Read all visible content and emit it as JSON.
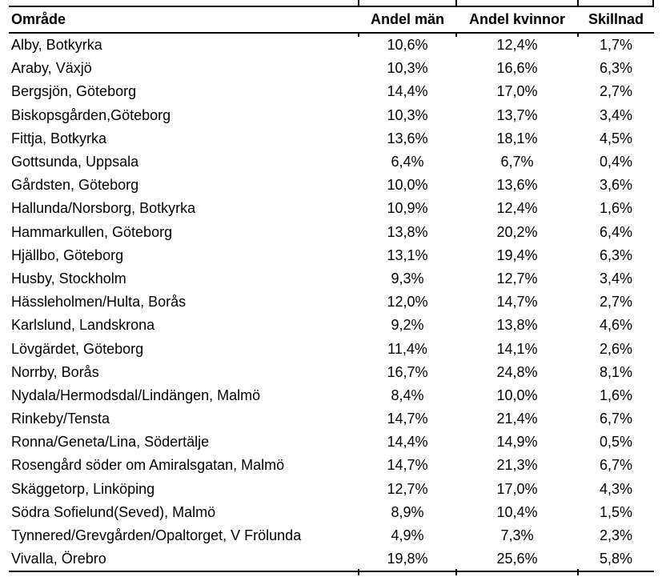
{
  "table": {
    "columns": [
      {
        "key": "omrade",
        "label": "Område"
      },
      {
        "key": "andel_man",
        "label": "Andel män"
      },
      {
        "key": "andel_kvinnor",
        "label": "Andel kvinnor"
      },
      {
        "key": "skillnad",
        "label": "Skillnad"
      }
    ],
    "rows": [
      {
        "omrade": "Alby, Botkyrka",
        "andel_man": "10,6%",
        "andel_kvinnor": "12,4%",
        "skillnad": "1,7%"
      },
      {
        "omrade": "Araby, Växjö",
        "andel_man": "10,3%",
        "andel_kvinnor": "16,6%",
        "skillnad": "6,3%"
      },
      {
        "omrade": "Bergsjön, Göteborg",
        "andel_man": "14,4%",
        "andel_kvinnor": "17,0%",
        "skillnad": "2,7%"
      },
      {
        "omrade": "Biskopsgården,Göteborg",
        "andel_man": "10,3%",
        "andel_kvinnor": "13,7%",
        "skillnad": "3,4%"
      },
      {
        "omrade": "Fittja, Botkyrka",
        "andel_man": "13,6%",
        "andel_kvinnor": "18,1%",
        "skillnad": "4,5%"
      },
      {
        "omrade": "Gottsunda, Uppsala",
        "andel_man": "6,4%",
        "andel_kvinnor": "6,7%",
        "skillnad": "0,4%"
      },
      {
        "omrade": "Gårdsten, Göteborg",
        "andel_man": "10,0%",
        "andel_kvinnor": "13,6%",
        "skillnad": "3,6%"
      },
      {
        "omrade": "Hallunda/Norsborg, Botkyrka",
        "andel_man": "10,9%",
        "andel_kvinnor": "12,4%",
        "skillnad": "1,6%"
      },
      {
        "omrade": "Hammarkullen, Göteborg",
        "andel_man": "13,8%",
        "andel_kvinnor": "20,2%",
        "skillnad": "6,4%"
      },
      {
        "omrade": "Hjällbo, Göteborg",
        "andel_man": "13,1%",
        "andel_kvinnor": "19,4%",
        "skillnad": "6,3%"
      },
      {
        "omrade": "Husby, Stockholm",
        "andel_man": "9,3%",
        "andel_kvinnor": "12,7%",
        "skillnad": "3,4%"
      },
      {
        "omrade": "Hässleholmen/Hulta, Borås",
        "andel_man": "12,0%",
        "andel_kvinnor": "14,7%",
        "skillnad": "2,7%"
      },
      {
        "omrade": "Karlslund, Landskrona",
        "andel_man": "9,2%",
        "andel_kvinnor": "13,8%",
        "skillnad": "4,6%"
      },
      {
        "omrade": "Lövgärdet, Göteborg",
        "andel_man": "11,4%",
        "andel_kvinnor": "14,1%",
        "skillnad": "2,6%"
      },
      {
        "omrade": "Norrby, Borås",
        "andel_man": "16,7%",
        "andel_kvinnor": "24,8%",
        "skillnad": "8,1%"
      },
      {
        "omrade": "Nydala/Hermodsdal/Lindängen, Malmö",
        "andel_man": "8,4%",
        "andel_kvinnor": "10,0%",
        "skillnad": "1,6%"
      },
      {
        "omrade": "Rinkeby/Tensta",
        "andel_man": "14,7%",
        "andel_kvinnor": "21,4%",
        "skillnad": "6,7%"
      },
      {
        "omrade": "Ronna/Geneta/Lina, Södertälje",
        "andel_man": "14,4%",
        "andel_kvinnor": "14,9%",
        "skillnad": "0,5%"
      },
      {
        "omrade": "Rosengård söder om Amiralsgatan, Malmö",
        "andel_man": "14,7%",
        "andel_kvinnor": "21,3%",
        "skillnad": "6,7%"
      },
      {
        "omrade": "Skäggetorp, Linköping",
        "andel_man": "12,7%",
        "andel_kvinnor": "17,0%",
        "skillnad": "4,3%"
      },
      {
        "omrade": "Södra Sofielund(Seved), Malmö",
        "andel_man": "8,9%",
        "andel_kvinnor": "10,4%",
        "skillnad": "1,5%"
      },
      {
        "omrade": "Tynnered/Grevgården/Opaltorget, V Frölunda",
        "andel_man": "4,9%",
        "andel_kvinnor": "7,3%",
        "skillnad": "2,3%"
      },
      {
        "omrade": "Vivalla, Örebro",
        "andel_man": "19,8%",
        "andel_kvinnor": "25,6%",
        "skillnad": "5,8%"
      }
    ]
  },
  "colors": {
    "text": "#000000",
    "rule": "#000000",
    "background": "#ffffff"
  }
}
